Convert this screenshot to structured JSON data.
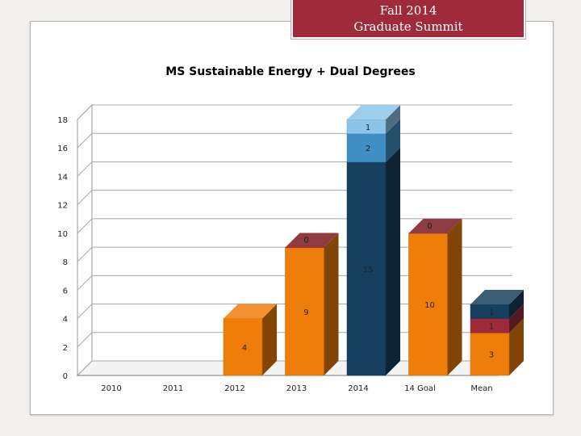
{
  "banner": {
    "line1": "Fall 2014",
    "line2": "Graduate Summit"
  },
  "chart_data": {
    "type": "bar",
    "stacked": true,
    "three_d": true,
    "title": "MS Sustainable Energy + Dual Degrees",
    "xlabel": "",
    "ylabel": "",
    "ylim": [
      0,
      18
    ],
    "yticks": [
      0,
      2,
      4,
      6,
      8,
      10,
      12,
      14,
      16,
      18
    ],
    "grid": true,
    "legend": "none",
    "categories": [
      "2010",
      "2011",
      "2012",
      "2013",
      "2014",
      "14 Goal",
      "Mean"
    ],
    "bars": [
      {
        "category": "2010",
        "segments": []
      },
      {
        "category": "2011",
        "segments": []
      },
      {
        "category": "2012",
        "segments": [
          {
            "value": 4,
            "label": "4",
            "color": "#ee7d0a"
          }
        ]
      },
      {
        "category": "2013",
        "segments": [
          {
            "value": 9,
            "label": "9",
            "color": "#ee7d0a"
          },
          {
            "value": 0,
            "label": "0",
            "color": "#7a1a1f"
          }
        ]
      },
      {
        "category": "2014",
        "segments": [
          {
            "value": 15,
            "label": "15",
            "color": "#17405e"
          },
          {
            "value": 2,
            "label": "2",
            "color": "#3f8fc4"
          },
          {
            "value": 1,
            "label": "1",
            "color": "#8cc5e8"
          }
        ]
      },
      {
        "category": "14 Goal",
        "segments": [
          {
            "value": 10,
            "label": "10",
            "color": "#ee7d0a"
          },
          {
            "value": 0,
            "label": "0",
            "color": "#7a1a1f"
          }
        ]
      },
      {
        "category": "Mean",
        "segments": [
          {
            "value": 3,
            "label": "3",
            "color": "#ee7d0a"
          },
          {
            "value": 1,
            "label": "1",
            "color": "#9e2a3a"
          },
          {
            "value": 1,
            "label": "1",
            "color": "#17405e"
          }
        ]
      }
    ]
  }
}
